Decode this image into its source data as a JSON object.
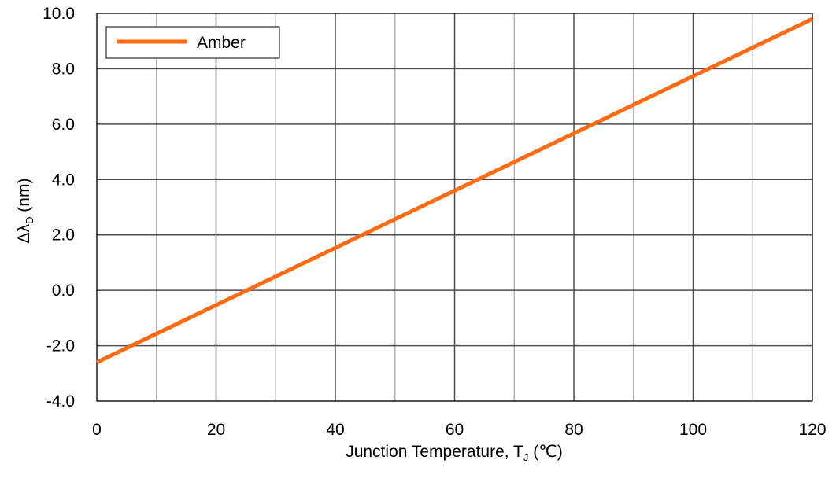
{
  "chart_data": {
    "type": "line",
    "title": "",
    "xlabel": {
      "main": "Junction Temperature, T",
      "sub": "J",
      "tail": " (℃)"
    },
    "ylabel": {
      "main": "Δλ",
      "sub": "D",
      "tail": " (nm)"
    },
    "xlim": [
      0,
      120
    ],
    "ylim": [
      -4,
      10
    ],
    "x_ticks": [
      0,
      20,
      40,
      60,
      80,
      100,
      120
    ],
    "x_tick_labels": [
      "0",
      "20",
      "40",
      "60",
      "80",
      "100",
      "120"
    ],
    "y_ticks": [
      -4,
      -2,
      0,
      2,
      4,
      6,
      8,
      10
    ],
    "y_tick_labels": [
      "-4.0",
      "-2.0",
      "0.0",
      "2.0",
      "4.0",
      "6.0",
      "8.0",
      "10.0"
    ],
    "grid": {
      "major": true,
      "minor_x": true
    },
    "legend": {
      "position": "top-left"
    },
    "series": [
      {
        "name": "Amber",
        "color": "#ff6a13",
        "x": [
          0,
          120
        ],
        "y": [
          -2.6,
          9.8
        ]
      }
    ]
  }
}
